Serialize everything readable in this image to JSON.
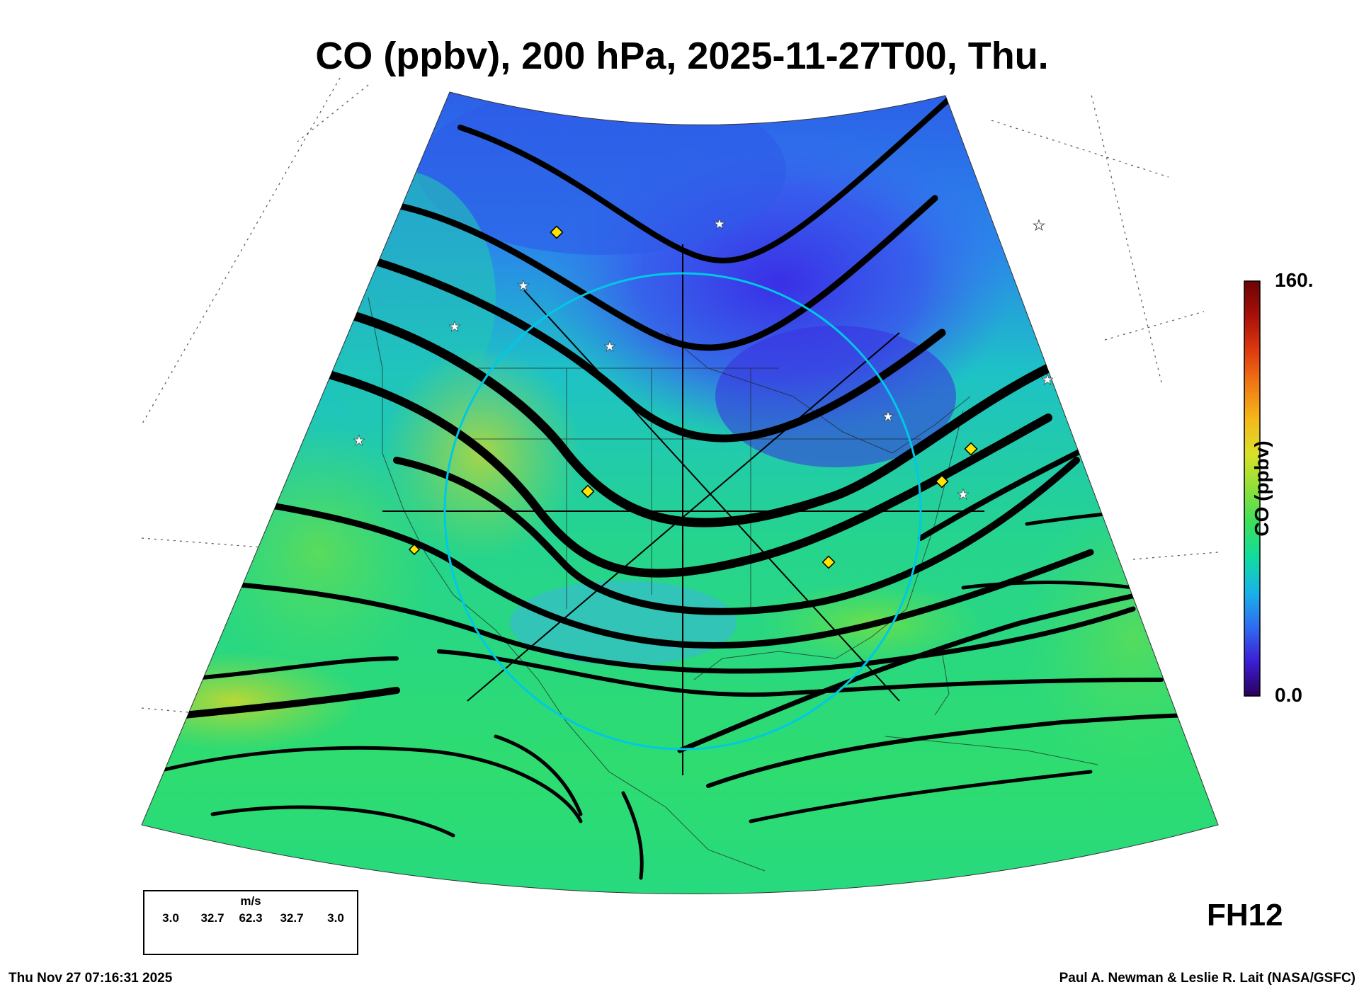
{
  "title": "CO (ppbv), 200 hPa, 2025-11-27T00, Thu.",
  "colorbar": {
    "label": "CO (ppbv)",
    "max_label": "160.",
    "min_label": "0.0",
    "colors": [
      "#2a005a",
      "#3c1ed6",
      "#2f6df0",
      "#19b3e8",
      "#10dca0",
      "#3be05c",
      "#8ee03a",
      "#d9e02a",
      "#f5b81a",
      "#f07a14",
      "#de3a10",
      "#a81008",
      "#6a0404"
    ]
  },
  "forecast_hour": "FH12",
  "wind_legend": {
    "unit": "m/s",
    "speeds": [
      "3.0",
      "32.7",
      "62.3",
      "32.7",
      "3.0"
    ]
  },
  "footer": {
    "timestamp": "Thu Nov 27 07:16:31 2025",
    "credit": "Paul A. Newman & Leslie R. Lait (NASA/GSFC)"
  },
  "map": {
    "projection": "polar stereographic sector, North America",
    "field_colors": {
      "low": "#2f55e8",
      "mid": "#1fc4c0",
      "high": "#4fe054",
      "peak": "#b8d832"
    },
    "streamline_color": "#000000",
    "marker_colors": {
      "diamond": "#ffe600",
      "star": "#ffffff"
    }
  }
}
